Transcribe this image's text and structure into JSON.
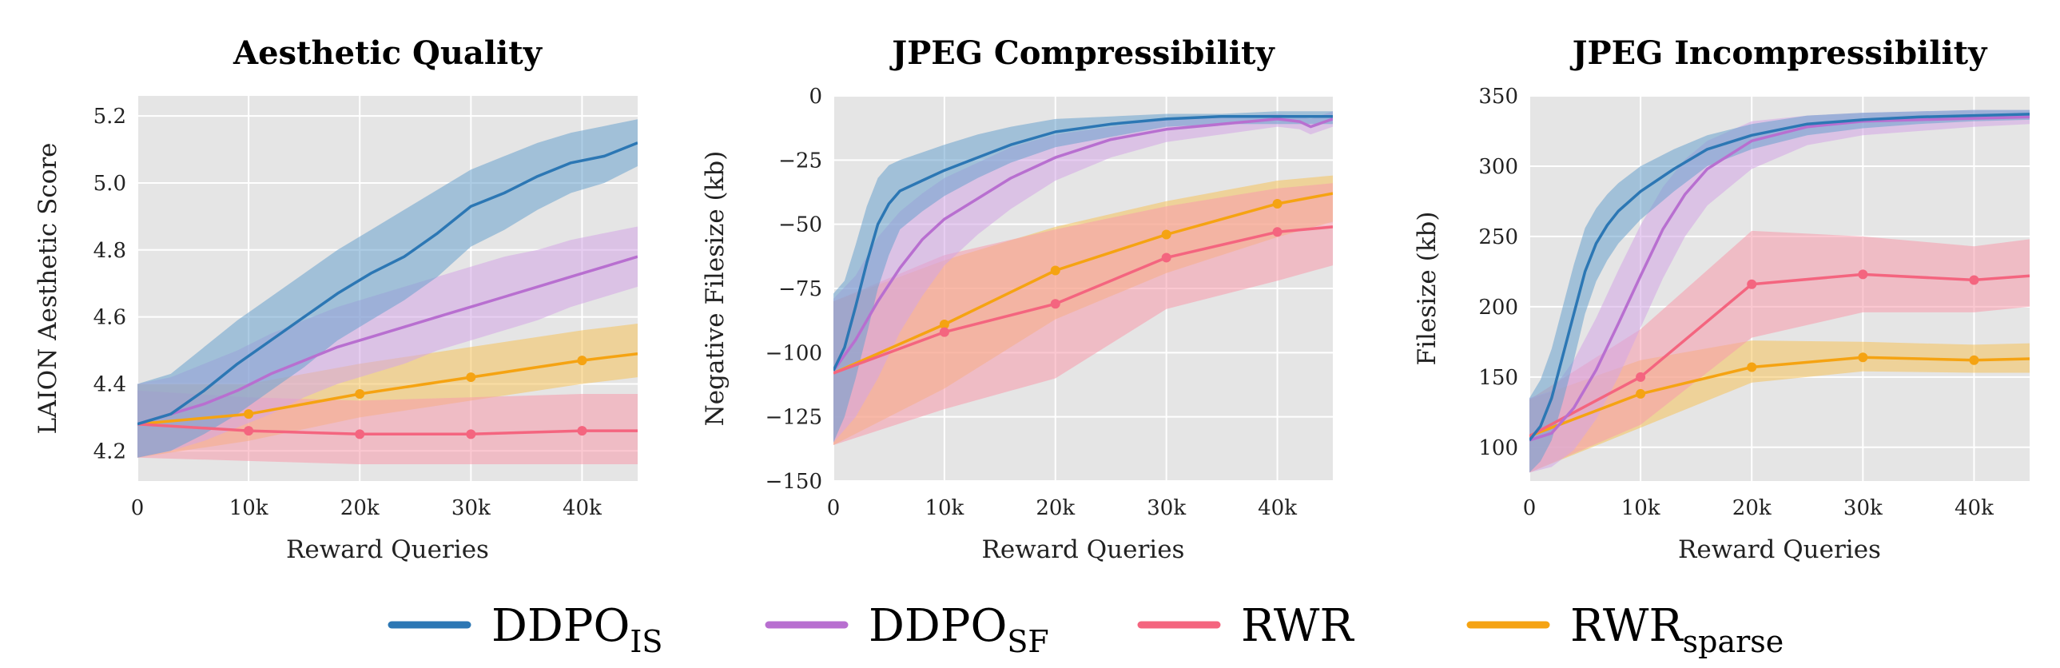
{
  "chart_data": [
    {
      "type": "line",
      "title": "Aesthetic Quality",
      "xlabel": "Reward Queries",
      "ylabel": "LAION Aesthetic Score",
      "xlim": [
        0,
        45000
      ],
      "ylim": [
        4.11,
        5.26
      ],
      "xticks": [
        0,
        10000,
        20000,
        30000,
        40000
      ],
      "xtick_labels": [
        "0",
        "10k",
        "20k",
        "30k",
        "40k"
      ],
      "yticks": [
        4.2,
        4.4,
        4.6,
        4.8,
        5.0,
        5.2
      ],
      "ytick_labels": [
        "4.2",
        "4.4",
        "4.6",
        "4.8",
        "5.0",
        "5.2"
      ],
      "grid": true,
      "series": [
        {
          "name": "DDPO_IS",
          "x": [
            0,
            3000,
            6000,
            9000,
            12000,
            15000,
            18000,
            21000,
            24000,
            27000,
            30000,
            33000,
            36000,
            39000,
            42000,
            45000
          ],
          "y": [
            4.28,
            4.31,
            4.38,
            4.46,
            4.53,
            4.6,
            4.67,
            4.73,
            4.78,
            4.85,
            4.93,
            4.97,
            5.02,
            5.06,
            5.08,
            5.12
          ],
          "lower": [
            4.18,
            4.2,
            4.25,
            4.31,
            4.38,
            4.45,
            4.53,
            4.59,
            4.65,
            4.72,
            4.81,
            4.86,
            4.92,
            4.97,
            5.0,
            5.05
          ],
          "upper": [
            4.4,
            4.43,
            4.51,
            4.59,
            4.66,
            4.73,
            4.8,
            4.86,
            4.92,
            4.98,
            5.04,
            5.08,
            5.12,
            5.15,
            5.17,
            5.19
          ]
        },
        {
          "name": "DDPO_SF",
          "x": [
            0,
            3000,
            6000,
            9000,
            12000,
            15000,
            18000,
            21000,
            24000,
            27000,
            30000,
            33000,
            36000,
            39000,
            42000,
            45000
          ],
          "y": [
            4.28,
            4.31,
            4.34,
            4.38,
            4.43,
            4.47,
            4.51,
            4.54,
            4.57,
            4.6,
            4.63,
            4.66,
            4.69,
            4.72,
            4.75,
            4.78
          ],
          "lower": [
            4.18,
            4.2,
            4.23,
            4.27,
            4.31,
            4.36,
            4.4,
            4.43,
            4.46,
            4.5,
            4.53,
            4.56,
            4.59,
            4.63,
            4.66,
            4.69
          ],
          "upper": [
            4.4,
            4.42,
            4.46,
            4.5,
            4.55,
            4.59,
            4.63,
            4.66,
            4.69,
            4.72,
            4.75,
            4.78,
            4.8,
            4.83,
            4.85,
            4.87
          ]
        },
        {
          "name": "RWR",
          "x": [
            0,
            10000,
            20000,
            30000,
            40000,
            45000
          ],
          "y": [
            4.28,
            4.26,
            4.25,
            4.25,
            4.26,
            4.26
          ],
          "markers": [
            10000,
            20000,
            30000,
            40000
          ],
          "lower": [
            4.18,
            4.17,
            4.16,
            4.16,
            4.16,
            4.16
          ],
          "upper": [
            4.38,
            4.36,
            4.35,
            4.36,
            4.37,
            4.37
          ]
        },
        {
          "name": "RWR_sparse",
          "x": [
            0,
            10000,
            20000,
            30000,
            40000,
            45000
          ],
          "y": [
            4.28,
            4.31,
            4.37,
            4.42,
            4.47,
            4.49
          ],
          "markers": [
            10000,
            20000,
            30000,
            40000
          ],
          "lower": [
            4.18,
            4.23,
            4.3,
            4.35,
            4.4,
            4.42
          ],
          "upper": [
            4.4,
            4.4,
            4.46,
            4.51,
            4.56,
            4.58
          ]
        }
      ]
    },
    {
      "type": "line",
      "title": "JPEG Compressibility",
      "xlabel": "Reward Queries",
      "ylabel": "Negative Filesize (kb)",
      "xlim": [
        0,
        45000
      ],
      "ylim": [
        -150,
        0
      ],
      "xticks": [
        0,
        10000,
        20000,
        30000,
        40000
      ],
      "xtick_labels": [
        "0",
        "10k",
        "20k",
        "30k",
        "40k"
      ],
      "yticks": [
        0,
        -25,
        -50,
        -75,
        -100,
        -125,
        -150
      ],
      "ytick_labels": [
        "0",
        "−25",
        "−50",
        "−75",
        "−100",
        "−125",
        "−150"
      ],
      "grid": true,
      "series": [
        {
          "name": "DDPO_IS",
          "x": [
            0,
            1000,
            2000,
            3000,
            4000,
            5000,
            6000,
            8000,
            10000,
            13000,
            16000,
            20000,
            25000,
            30000,
            35000,
            40000,
            45000
          ],
          "y": [
            -107,
            -98,
            -82,
            -65,
            -50,
            -42,
            -37,
            -33,
            -29,
            -24,
            -19,
            -14,
            -11,
            -9,
            -8,
            -8,
            -8
          ],
          "lower": [
            -135,
            -125,
            -110,
            -93,
            -75,
            -62,
            -52,
            -45,
            -39,
            -32,
            -26,
            -20,
            -16,
            -12,
            -11,
            -11,
            -11
          ],
          "upper": [
            -77,
            -72,
            -58,
            -43,
            -32,
            -27,
            -25,
            -22,
            -19,
            -15,
            -12,
            -9,
            -8,
            -7,
            -7,
            -6,
            -6
          ]
        },
        {
          "name": "DDPO_SF",
          "x": [
            0,
            2000,
            4000,
            6000,
            8000,
            10000,
            13000,
            16000,
            20000,
            25000,
            30000,
            35000,
            40000,
            42000,
            43000,
            45000
          ],
          "y": [
            -107,
            -95,
            -80,
            -67,
            -56,
            -48,
            -40,
            -32,
            -24,
            -17,
            -13,
            -11,
            -9,
            -10,
            -12,
            -9
          ],
          "lower": [
            -135,
            -125,
            -110,
            -92,
            -78,
            -66,
            -54,
            -44,
            -33,
            -24,
            -18,
            -15,
            -12,
            -13,
            -15,
            -12
          ],
          "upper": [
            -79,
            -70,
            -55,
            -45,
            -38,
            -32,
            -26,
            -20,
            -15,
            -12,
            -9,
            -8,
            -7,
            -8,
            -9,
            -6
          ]
        },
        {
          "name": "RWR",
          "x": [
            0,
            10000,
            20000,
            30000,
            40000,
            45000
          ],
          "y": [
            -108,
            -92,
            -81,
            -63,
            -53,
            -51
          ],
          "markers": [
            10000,
            20000,
            30000,
            40000
          ],
          "lower": [
            -136,
            -122,
            -110,
            -83,
            -72,
            -66
          ],
          "upper": [
            -80,
            -62,
            -52,
            -43,
            -36,
            -34
          ]
        },
        {
          "name": "RWR_sparse",
          "x": [
            0,
            10000,
            20000,
            30000,
            40000,
            45000
          ],
          "y": [
            -108,
            -89,
            -68,
            -54,
            -42,
            -38
          ],
          "markers": [
            10000,
            20000,
            30000,
            40000
          ],
          "lower": [
            -136,
            -114,
            -87,
            -69,
            -55,
            -49
          ],
          "upper": [
            -80,
            -64,
            -51,
            -41,
            -33,
            -31
          ]
        }
      ]
    },
    {
      "type": "line",
      "title": "JPEG Incompressibility",
      "xlabel": "Reward Queries",
      "ylabel": "Filesize (kb)",
      "xlim": [
        0,
        45000
      ],
      "ylim": [
        76,
        350
      ],
      "xticks": [
        0,
        10000,
        20000,
        30000,
        40000
      ],
      "xtick_labels": [
        "0",
        "10k",
        "20k",
        "30k",
        "40k"
      ],
      "yticks": [
        100,
        150,
        200,
        250,
        300,
        350
      ],
      "ytick_labels": [
        "100",
        "150",
        "200",
        "250",
        "300",
        "350"
      ],
      "grid": true,
      "series": [
        {
          "name": "DDPO_IS",
          "x": [
            0,
            1000,
            2000,
            3000,
            4000,
            5000,
            6000,
            7000,
            8000,
            10000,
            13000,
            16000,
            20000,
            25000,
            30000,
            35000,
            40000,
            45000
          ],
          "y": [
            105,
            115,
            135,
            165,
            195,
            225,
            245,
            258,
            268,
            282,
            298,
            312,
            322,
            330,
            333,
            335,
            336,
            337
          ],
          "lower": [
            82,
            90,
            105,
            132,
            162,
            195,
            218,
            233,
            245,
            262,
            282,
            300,
            312,
            322,
            327,
            330,
            332,
            333
          ],
          "upper": [
            135,
            148,
            170,
            200,
            230,
            256,
            270,
            280,
            288,
            300,
            312,
            322,
            330,
            336,
            338,
            339,
            340,
            340
          ]
        },
        {
          "name": "DDPO_SF",
          "x": [
            0,
            2000,
            4000,
            6000,
            8000,
            10000,
            12000,
            14000,
            16000,
            20000,
            25000,
            30000,
            35000,
            40000,
            45000
          ],
          "y": [
            105,
            110,
            128,
            155,
            188,
            222,
            255,
            280,
            298,
            318,
            328,
            332,
            333,
            334,
            335
          ],
          "lower": [
            82,
            86,
            98,
            120,
            150,
            185,
            220,
            250,
            272,
            298,
            315,
            322,
            325,
            328,
            330
          ],
          "upper": [
            135,
            140,
            162,
            192,
            226,
            258,
            285,
            305,
            318,
            332,
            336,
            338,
            339,
            340,
            340
          ]
        },
        {
          "name": "RWR",
          "x": [
            0,
            10000,
            20000,
            30000,
            40000,
            45000
          ],
          "y": [
            108,
            150,
            216,
            223,
            219,
            222
          ],
          "markers": [
            10000,
            20000,
            30000,
            40000
          ],
          "lower": [
            82,
            116,
            178,
            196,
            196,
            200
          ],
          "upper": [
            134,
            184,
            254,
            250,
            243,
            248
          ]
        },
        {
          "name": "RWR_sparse",
          "x": [
            0,
            10000,
            20000,
            30000,
            40000,
            45000
          ],
          "y": [
            108,
            138,
            157,
            164,
            162,
            163
          ],
          "markers": [
            10000,
            20000,
            30000,
            40000
          ],
          "lower": [
            82,
            114,
            146,
            154,
            153,
            153
          ],
          "upper": [
            134,
            162,
            176,
            175,
            173,
            174
          ]
        }
      ]
    }
  ],
  "legend": {
    "placement": "bottom-center",
    "items": [
      {
        "main": "DDPO",
        "sub": "IS",
        "color": "#2c77b4"
      },
      {
        "main": "DDPO",
        "sub": "SF",
        "color": "#b86fd0"
      },
      {
        "main": "RWR",
        "sub": "",
        "color": "#f4657f"
      },
      {
        "main": "RWR",
        "sub": "sparse",
        "color": "#f5a312"
      }
    ]
  },
  "colors": {
    "DDPO_IS": "#2c77b4",
    "DDPO_SF": "#b86fd0",
    "RWR": "#f4657f",
    "RWR_sparse": "#f5a312",
    "band_DDPO_IS": "#6aa3ce",
    "band_DDPO_SF": "#d4a5e6",
    "band_RWR": "#f79aab",
    "band_RWR_sparse": "#f6c35b",
    "panel_bg": "#e5e5e5"
  }
}
